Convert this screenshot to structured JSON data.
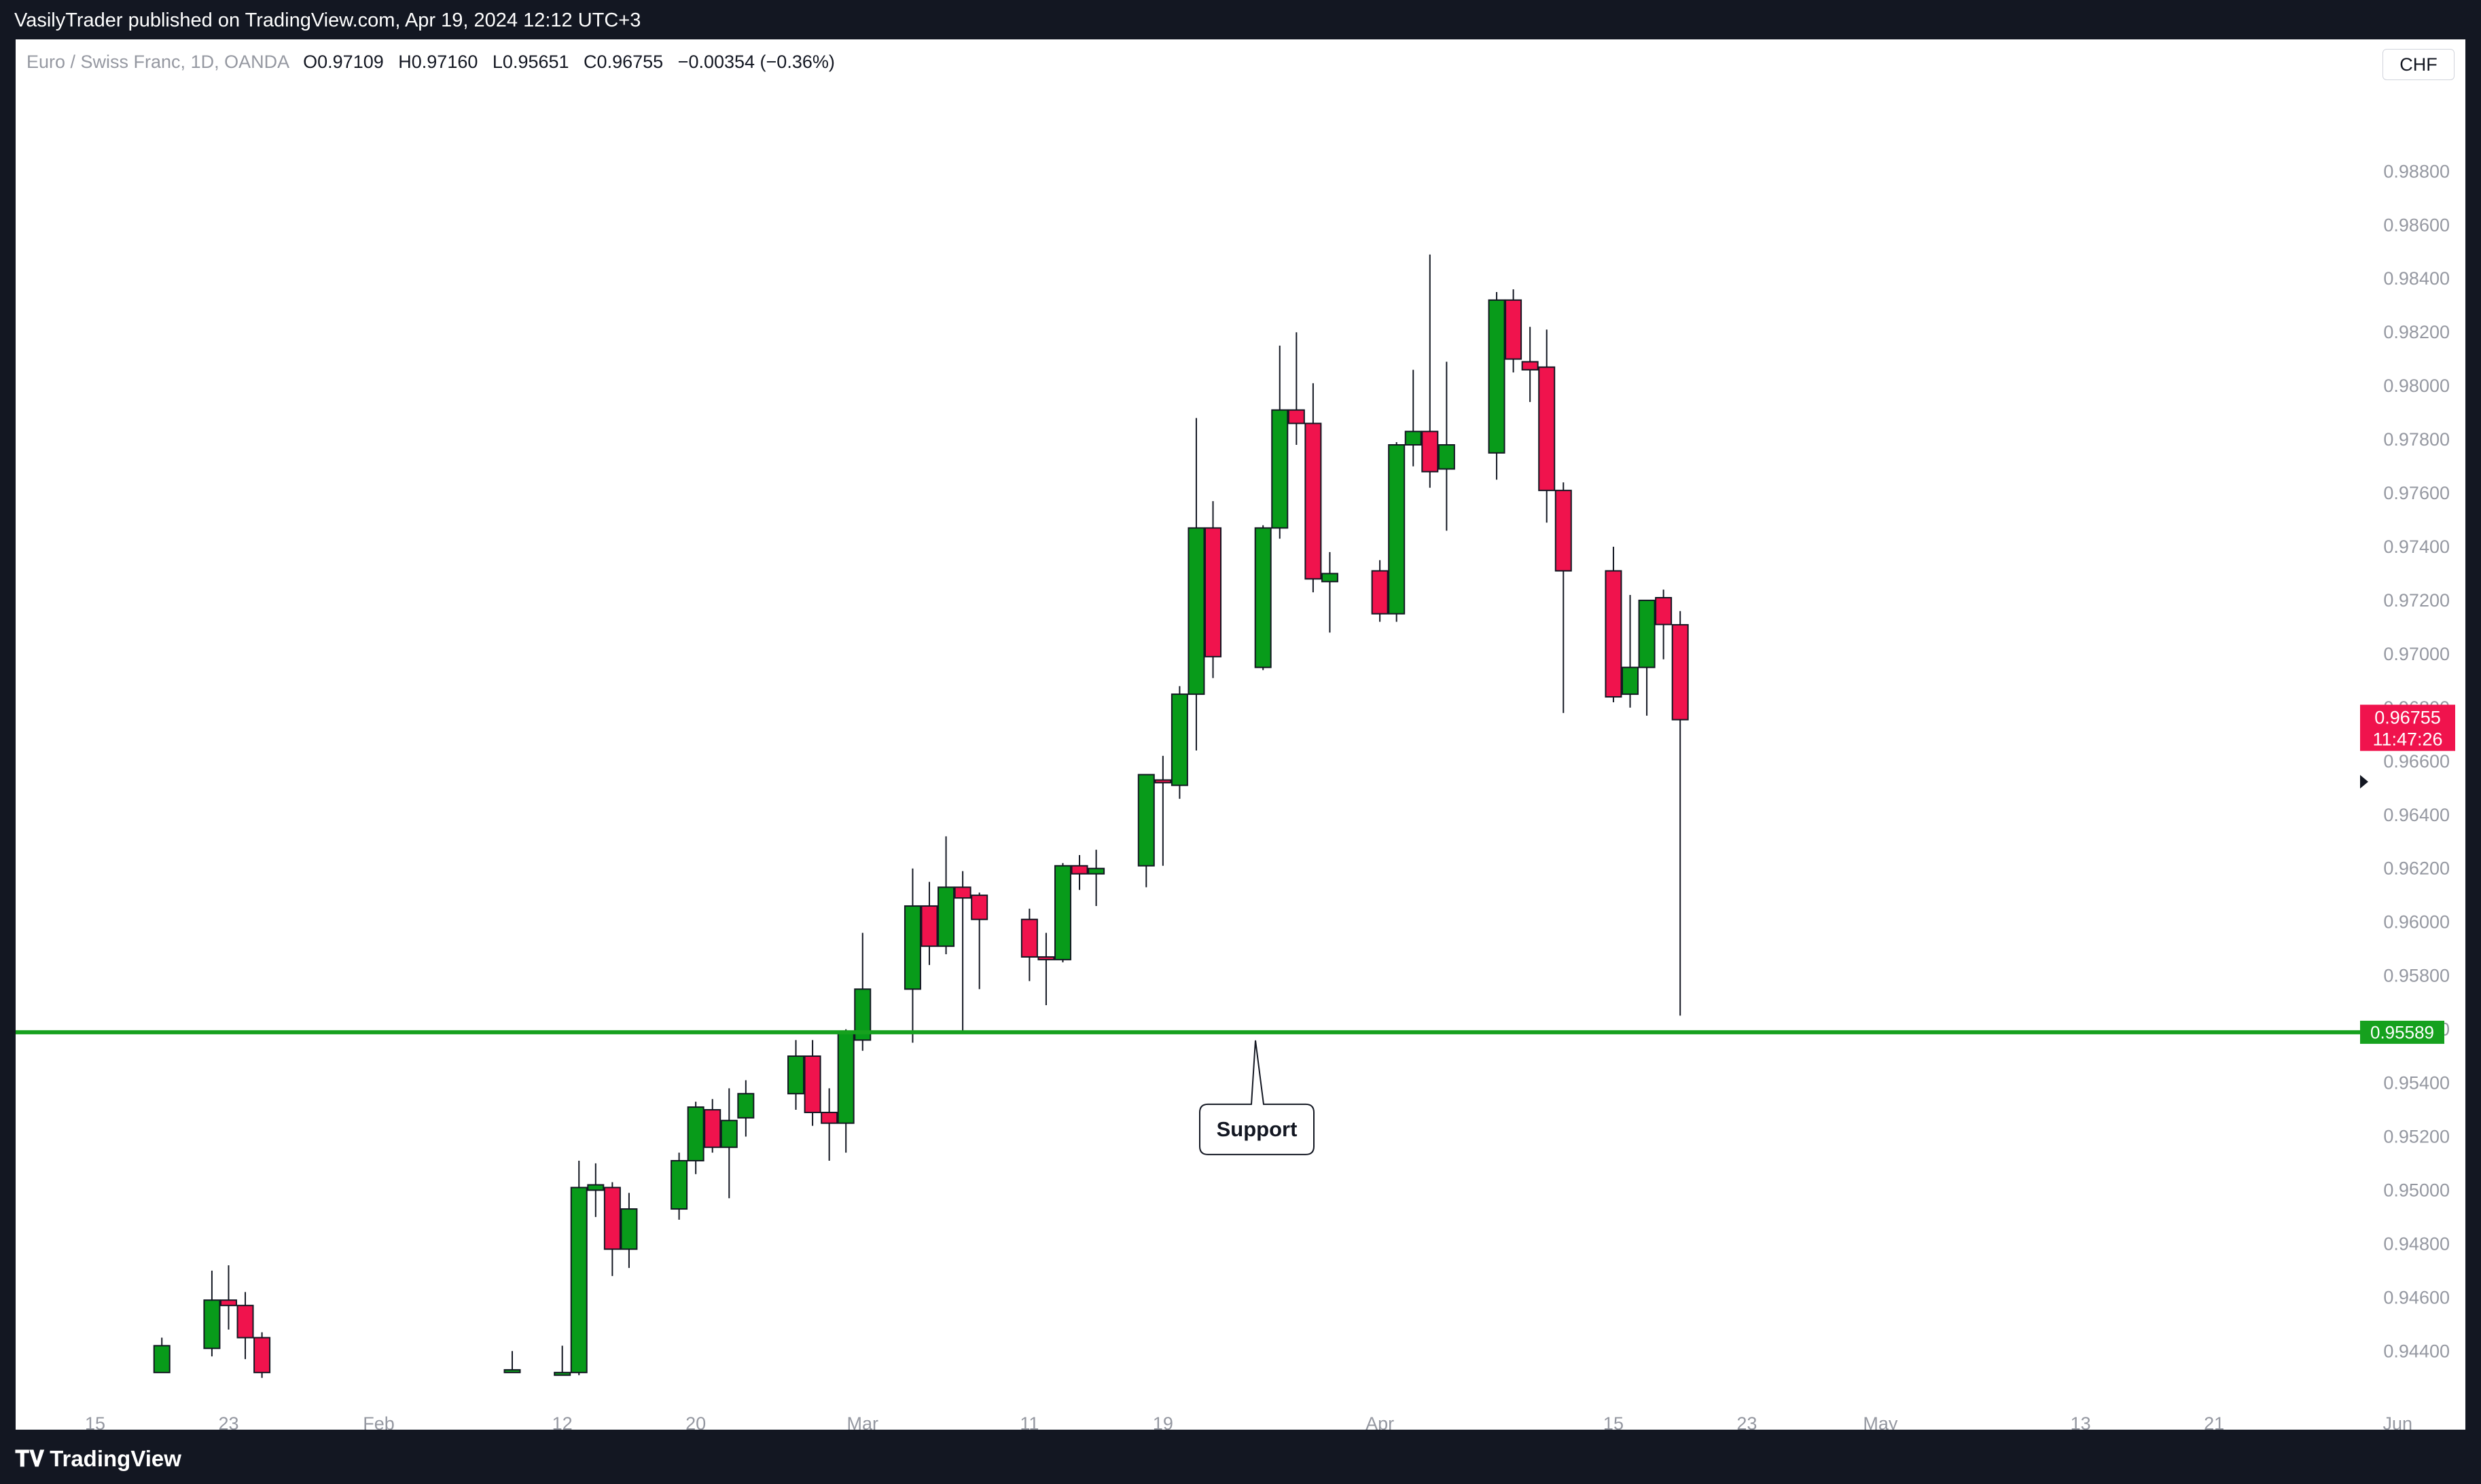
{
  "header": {
    "published": "VasilyTrader published on TradingView.com, Apr 19, 2024 12:12 UTC+3"
  },
  "legend": {
    "symbol": "Euro / Swiss Franc, 1D, OANDA",
    "o_label": "O",
    "o": "0.97109",
    "h_label": "H",
    "h": "0.97160",
    "l_label": "L",
    "l": "0.95651",
    "c_label": "C",
    "c": "0.96755",
    "change": "−0.00354 (−0.36%)"
  },
  "currency_button": "CHF",
  "footer": {
    "logo_text": "TradingView"
  },
  "colors": {
    "up": "#089b1a",
    "down": "#f0134d",
    "support": "#16a11e",
    "price_tag": "#f0134d"
  },
  "chart_data": {
    "type": "candlestick",
    "y_axis": {
      "min": 0.94312,
      "max": 0.98963,
      "side": "right",
      "ticks": [
        "0.94400",
        "0.94600",
        "0.94800",
        "0.95000",
        "0.95200",
        "0.95400",
        "0.95600",
        "0.95800",
        "0.96000",
        "0.96200",
        "0.96400",
        "0.96600",
        "0.96800",
        "0.97000",
        "0.97200",
        "0.97400",
        "0.97600",
        "0.97800",
        "0.98000",
        "0.98200",
        "0.98400",
        "0.98600",
        "0.98800"
      ]
    },
    "x_axis": {
      "ticks": [
        {
          "label": "15",
          "date": "2024-01-15"
        },
        {
          "label": "23",
          "date": "2024-01-23"
        },
        {
          "label": "Feb",
          "date": "2024-02-01"
        },
        {
          "label": "12",
          "date": "2024-02-12"
        },
        {
          "label": "20",
          "date": "2024-02-20"
        },
        {
          "label": "Mar",
          "date": "2024-03-01"
        },
        {
          "label": "11",
          "date": "2024-03-11"
        },
        {
          "label": "19",
          "date": "2024-03-19"
        },
        {
          "label": "Apr",
          "date": "2024-04-01"
        },
        {
          "label": "15",
          "date": "2024-04-15"
        },
        {
          "label": "23",
          "date": "2024-04-23"
        },
        {
          "label": "May",
          "date": "2024-05-01"
        },
        {
          "label": "13",
          "date": "2024-05-13"
        },
        {
          "label": "21",
          "date": "2024-05-21"
        },
        {
          "label": "Jun",
          "date": "2024-06-01"
        }
      ]
    },
    "candles": [
      {
        "date": "2024-01-19",
        "o": 0.9432,
        "h": 0.9445,
        "l": 0.9432,
        "c": 0.9442
      },
      {
        "date": "2024-01-22",
        "o": 0.9441,
        "h": 0.947,
        "l": 0.9438,
        "c": 0.9459
      },
      {
        "date": "2024-01-23",
        "o": 0.9459,
        "h": 0.9472,
        "l": 0.9448,
        "c": 0.9457
      },
      {
        "date": "2024-01-24",
        "o": 0.9457,
        "h": 0.9462,
        "l": 0.9437,
        "c": 0.9445
      },
      {
        "date": "2024-01-25",
        "o": 0.9445,
        "h": 0.9447,
        "l": 0.943,
        "c": 0.9432
      },
      {
        "date": "2024-02-09",
        "o": 0.9432,
        "h": 0.944,
        "l": 0.9432,
        "c": 0.9433
      },
      {
        "date": "2024-02-12",
        "o": 0.9431,
        "h": 0.9442,
        "l": 0.9431,
        "c": 0.9432
      },
      {
        "date": "2024-02-13",
        "o": 0.9432,
        "h": 0.9511,
        "l": 0.9431,
        "c": 0.9501
      },
      {
        "date": "2024-02-14",
        "o": 0.95,
        "h": 0.951,
        "l": 0.949,
        "c": 0.9502
      },
      {
        "date": "2024-02-15",
        "o": 0.9501,
        "h": 0.9503,
        "l": 0.9468,
        "c": 0.9478
      },
      {
        "date": "2024-02-16",
        "o": 0.9478,
        "h": 0.9499,
        "l": 0.9471,
        "c": 0.9493
      },
      {
        "date": "2024-02-19",
        "o": 0.9493,
        "h": 0.9514,
        "l": 0.9489,
        "c": 0.9511
      },
      {
        "date": "2024-02-20",
        "o": 0.9511,
        "h": 0.9533,
        "l": 0.9506,
        "c": 0.9531
      },
      {
        "date": "2024-02-21",
        "o": 0.953,
        "h": 0.9534,
        "l": 0.9514,
        "c": 0.9516
      },
      {
        "date": "2024-02-22",
        "o": 0.9516,
        "h": 0.9538,
        "l": 0.9497,
        "c": 0.9526
      },
      {
        "date": "2024-02-23",
        "o": 0.9527,
        "h": 0.9541,
        "l": 0.952,
        "c": 0.9536
      },
      {
        "date": "2024-02-26",
        "o": 0.9536,
        "h": 0.9556,
        "l": 0.953,
        "c": 0.955
      },
      {
        "date": "2024-02-27",
        "o": 0.955,
        "h": 0.9556,
        "l": 0.9524,
        "c": 0.9529
      },
      {
        "date": "2024-02-28",
        "o": 0.9529,
        "h": 0.9538,
        "l": 0.9511,
        "c": 0.9525
      },
      {
        "date": "2024-02-29",
        "o": 0.9525,
        "h": 0.956,
        "l": 0.9514,
        "c": 0.9559
      },
      {
        "date": "2024-03-01",
        "o": 0.9556,
        "h": 0.9596,
        "l": 0.9552,
        "c": 0.9575
      },
      {
        "date": "2024-03-04",
        "o": 0.9575,
        "h": 0.962,
        "l": 0.9555,
        "c": 0.9606
      },
      {
        "date": "2024-03-05",
        "o": 0.9606,
        "h": 0.9615,
        "l": 0.9584,
        "c": 0.9591
      },
      {
        "date": "2024-03-06",
        "o": 0.9591,
        "h": 0.9632,
        "l": 0.9588,
        "c": 0.9613
      },
      {
        "date": "2024-03-07",
        "o": 0.9613,
        "h": 0.9619,
        "l": 0.9559,
        "c": 0.9609
      },
      {
        "date": "2024-03-08",
        "o": 0.961,
        "h": 0.9611,
        "l": 0.9575,
        "c": 0.9601
      },
      {
        "date": "2024-03-11",
        "o": 0.9601,
        "h": 0.9605,
        "l": 0.9578,
        "c": 0.9587
      },
      {
        "date": "2024-03-12",
        "o": 0.9587,
        "h": 0.9596,
        "l": 0.9569,
        "c": 0.9586
      },
      {
        "date": "2024-03-13",
        "o": 0.9586,
        "h": 0.9622,
        "l": 0.9585,
        "c": 0.9621
      },
      {
        "date": "2024-03-14",
        "o": 0.9621,
        "h": 0.9625,
        "l": 0.9612,
        "c": 0.9618
      },
      {
        "date": "2024-03-15",
        "o": 0.9618,
        "h": 0.9627,
        "l": 0.9606,
        "c": 0.962
      },
      {
        "date": "2024-03-18",
        "o": 0.9621,
        "h": 0.9655,
        "l": 0.9613,
        "c": 0.9655
      },
      {
        "date": "2024-03-19",
        "o": 0.9653,
        "h": 0.9662,
        "l": 0.9621,
        "c": 0.9652
      },
      {
        "date": "2024-03-20",
        "o": 0.9651,
        "h": 0.9688,
        "l": 0.9646,
        "c": 0.9685
      },
      {
        "date": "2024-03-21",
        "o": 0.9685,
        "h": 0.9788,
        "l": 0.9664,
        "c": 0.9747
      },
      {
        "date": "2024-03-22",
        "o": 0.9747,
        "h": 0.9757,
        "l": 0.9691,
        "c": 0.9699
      },
      {
        "date": "2024-03-25",
        "o": 0.9695,
        "h": 0.9748,
        "l": 0.9694,
        "c": 0.9747
      },
      {
        "date": "2024-03-26",
        "o": 0.9747,
        "h": 0.9815,
        "l": 0.9743,
        "c": 0.9791
      },
      {
        "date": "2024-03-27",
        "o": 0.9791,
        "h": 0.982,
        "l": 0.9778,
        "c": 0.9786
      },
      {
        "date": "2024-03-28",
        "o": 0.9786,
        "h": 0.9801,
        "l": 0.9723,
        "c": 0.9728
      },
      {
        "date": "2024-03-29",
        "o": 0.9727,
        "h": 0.9738,
        "l": 0.9708,
        "c": 0.973
      },
      {
        "date": "2024-04-01",
        "o": 0.9731,
        "h": 0.9735,
        "l": 0.9712,
        "c": 0.9715
      },
      {
        "date": "2024-04-02",
        "o": 0.9715,
        "h": 0.9779,
        "l": 0.9712,
        "c": 0.9778
      },
      {
        "date": "2024-04-03",
        "o": 0.9778,
        "h": 0.9806,
        "l": 0.977,
        "c": 0.9783
      },
      {
        "date": "2024-04-04",
        "o": 0.9783,
        "h": 0.9849,
        "l": 0.9762,
        "c": 0.9768
      },
      {
        "date": "2024-04-05",
        "o": 0.9769,
        "h": 0.9809,
        "l": 0.9746,
        "c": 0.9778
      },
      {
        "date": "2024-04-08",
        "o": 0.9775,
        "h": 0.9835,
        "l": 0.9765,
        "c": 0.9832
      },
      {
        "date": "2024-04-09",
        "o": 0.9832,
        "h": 0.9836,
        "l": 0.9805,
        "c": 0.981
      },
      {
        "date": "2024-04-10",
        "o": 0.9809,
        "h": 0.9822,
        "l": 0.9794,
        "c": 0.9806
      },
      {
        "date": "2024-04-11",
        "o": 0.9807,
        "h": 0.9821,
        "l": 0.9749,
        "c": 0.9761
      },
      {
        "date": "2024-04-12",
        "o": 0.9761,
        "h": 0.9764,
        "l": 0.9678,
        "c": 0.9731
      },
      {
        "date": "2024-04-15",
        "o": 0.9731,
        "h": 0.974,
        "l": 0.9682,
        "c": 0.9684
      },
      {
        "date": "2024-04-16",
        "o": 0.9685,
        "h": 0.9722,
        "l": 0.968,
        "c": 0.9695
      },
      {
        "date": "2024-04-17",
        "o": 0.9695,
        "h": 0.972,
        "l": 0.9677,
        "c": 0.972
      },
      {
        "date": "2024-04-18",
        "o": 0.9721,
        "h": 0.9724,
        "l": 0.9698,
        "c": 0.9711
      },
      {
        "date": "2024-04-19",
        "o": 0.97109,
        "h": 0.9716,
        "l": 0.95651,
        "c": 0.96755
      }
    ],
    "support": {
      "level": 0.95589,
      "label": "Support",
      "tag": "0.95589"
    },
    "price_tag": {
      "value": "0.96755",
      "countdown": "11:47:26"
    }
  }
}
